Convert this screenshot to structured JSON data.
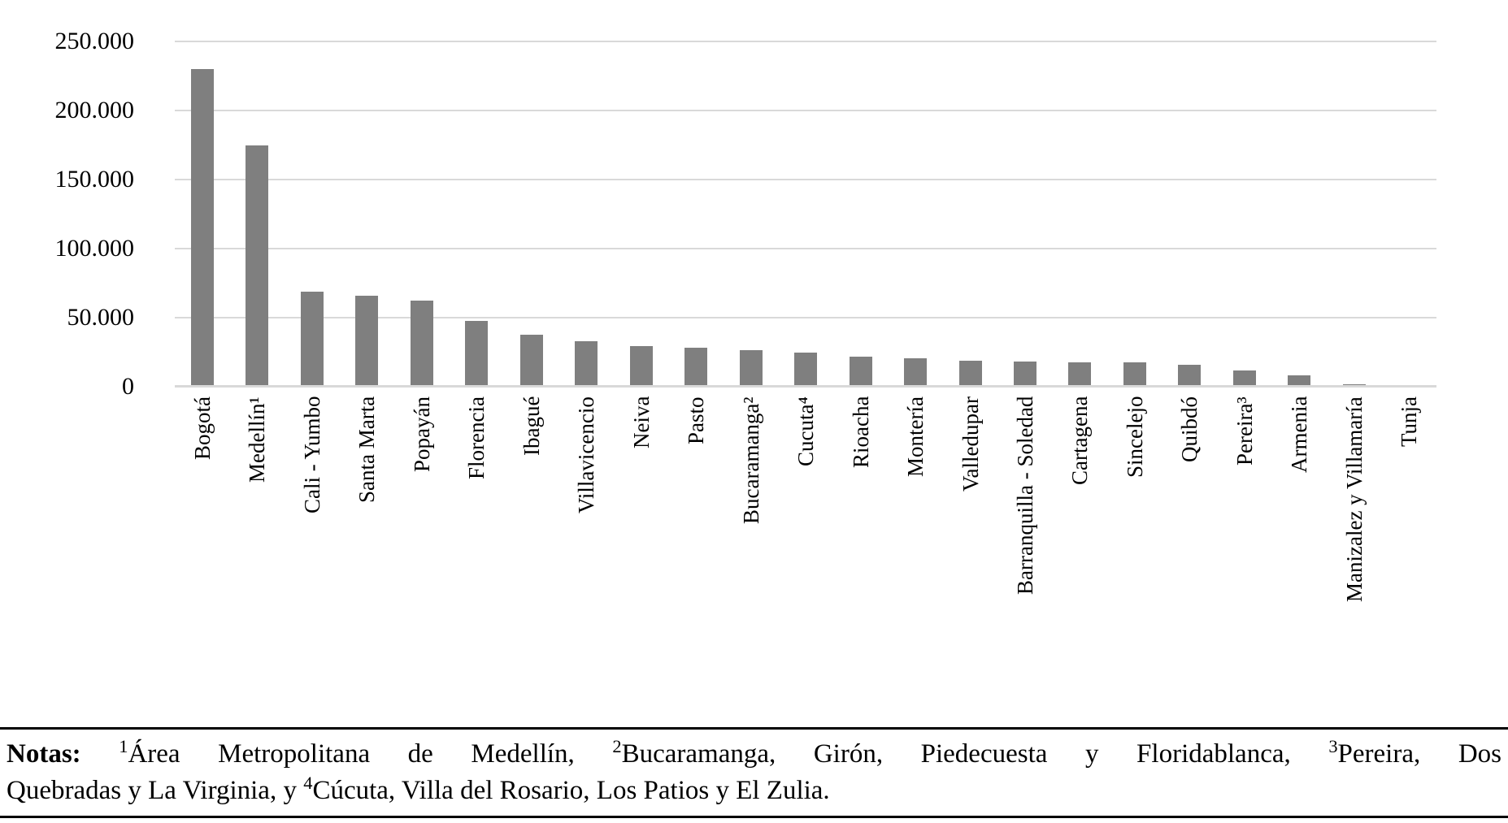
{
  "chart_data": {
    "type": "bar",
    "title": "",
    "xlabel": "",
    "ylabel": "",
    "categories": [
      "Bogotá",
      "Medellín¹",
      "Cali - Yumbo",
      "Santa Marta",
      "Popayán",
      "Florencia",
      "Ibagué",
      "Villavicencio",
      "Neiva",
      "Pasto",
      "Bucaramanga²",
      "Cucuta⁴",
      "Rioacha",
      "Montería",
      "Valledupar",
      "Barranquilla - Soledad",
      "Cartagena",
      "Sincelejo",
      "Quibdó",
      "Pereira³",
      "Armenia",
      "Manizalez y Villamaría",
      "Tunja"
    ],
    "values": [
      230000,
      175000,
      69000,
      66000,
      62500,
      47500,
      37500,
      33000,
      29500,
      28500,
      26500,
      25000,
      22000,
      20500,
      19000,
      18500,
      17500,
      17500,
      16000,
      11500,
      8500,
      2000,
      0
    ],
    "ylim": [
      0,
      250000
    ],
    "ytick_step": 50000,
    "ytick_labels": [
      "0",
      "50.000",
      "100.000",
      "150.000",
      "200.000",
      "250.000"
    ],
    "grid": true,
    "legend": "none",
    "bar_color": "#7f7f7f",
    "grid_color": "#d9d9d9",
    "text_color": "#000000"
  },
  "notes": {
    "lines": [
      {
        "justify": true,
        "segments": [
          {
            "bold": "Notas:"
          },
          {
            "text": " "
          },
          {
            "sup": "1"
          },
          {
            "text": "Área Metropolitana de Medellín, "
          },
          {
            "sup": "2"
          },
          {
            "text": "Bucaramanga, Girón, Piedecuesta y Floridablanca, "
          },
          {
            "sup": "3"
          },
          {
            "text": "Pereira, Dos"
          }
        ]
      },
      {
        "justify": false,
        "segments": [
          {
            "text": "Quebradas y La Virginia, y "
          },
          {
            "sup": "4"
          },
          {
            "text": "Cúcuta, Villa del Rosario, Los Patios y El Zulia."
          }
        ]
      }
    ]
  }
}
